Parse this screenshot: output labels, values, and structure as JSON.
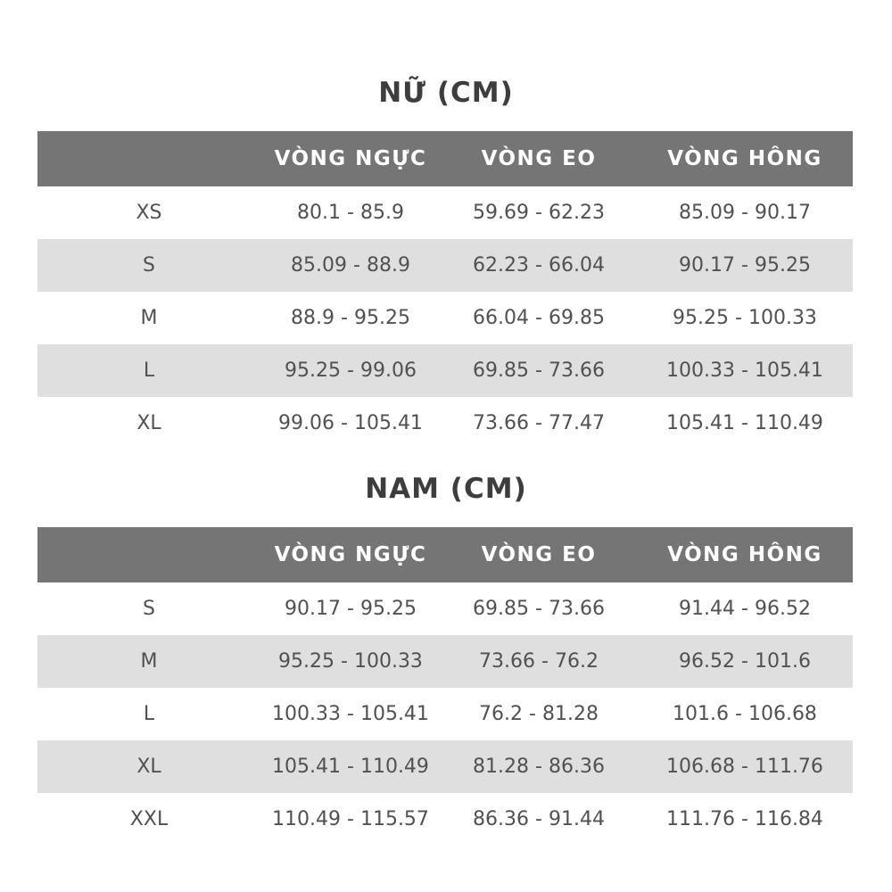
{
  "colors": {
    "header_bg": "#757575",
    "header_text": "#ffffff",
    "stripe_row_bg": "#dfdfdf",
    "body_text": "#515151",
    "title_text": "#3d3d3d",
    "page_bg": "#ffffff"
  },
  "chart_data": [
    {
      "type": "table",
      "title": "NỮ (CM)",
      "columns": [
        "",
        "VÒNG NGỰC",
        "VÒNG EO",
        "VÒNG HÔNG"
      ],
      "rows": [
        [
          "XS",
          "80.1 - 85.9",
          "59.69 - 62.23",
          "85.09 - 90.17"
        ],
        [
          "S",
          "85.09 - 88.9",
          "62.23 - 66.04",
          "90.17 - 95.25"
        ],
        [
          "M",
          "88.9 - 95.25",
          "66.04 - 69.85",
          "95.25 - 100.33"
        ],
        [
          "L",
          "95.25 - 99.06",
          "69.85 - 73.66",
          "100.33 - 105.41"
        ],
        [
          "XL",
          "99.06 - 105.41",
          "73.66 - 77.47",
          "105.41 - 110.49"
        ]
      ],
      "layout": {
        "stripe_pattern": "white-gray-alternating",
        "grid": "off",
        "header_filled": true
      }
    },
    {
      "type": "table",
      "title": "NAM (CM)",
      "columns": [
        "",
        "VÒNG NGỰC",
        "VÒNG EO",
        "VÒNG HÔNG"
      ],
      "rows": [
        [
          "S",
          "90.17 - 95.25",
          "69.85 - 73.66",
          "91.44 - 96.52"
        ],
        [
          "M",
          "95.25 - 100.33",
          "73.66 - 76.2",
          "96.52 - 101.6"
        ],
        [
          "L",
          "100.33 - 105.41",
          "76.2 - 81.28",
          "101.6 - 106.68"
        ],
        [
          "XL",
          "105.41 - 110.49",
          "81.28 - 86.36",
          "106.68 - 111.76"
        ],
        [
          "XXL",
          "110.49 - 115.57",
          "86.36 - 91.44",
          "111.76 - 116.84"
        ]
      ],
      "layout": {
        "stripe_pattern": "white-gray-alternating",
        "grid": "off",
        "header_filled": true
      }
    }
  ]
}
